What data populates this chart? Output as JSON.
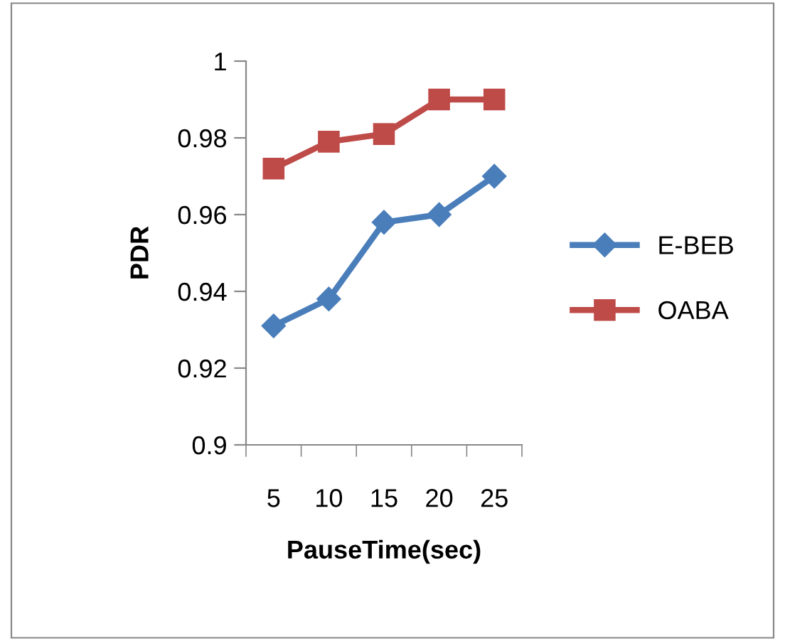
{
  "chart_data": {
    "type": "line",
    "xlabel": "PauseTime(sec)",
    "ylabel": "PDR",
    "categories": [
      "5",
      "10",
      "15",
      "20",
      "25"
    ],
    "series": [
      {
        "name": "E-BEB",
        "color": "#4a7ebb",
        "marker": "diamond",
        "values": [
          0.931,
          0.938,
          0.958,
          0.96,
          0.97
        ]
      },
      {
        "name": "OABA",
        "color": "#be4b48",
        "marker": "square",
        "values": [
          0.972,
          0.979,
          0.981,
          0.99,
          0.99
        ]
      }
    ],
    "ylim": [
      0.9,
      1
    ],
    "yticks": [
      0.9,
      0.92,
      0.94,
      0.96,
      0.98,
      1
    ],
    "grid": false,
    "legend": "right",
    "line_style": "solid"
  }
}
